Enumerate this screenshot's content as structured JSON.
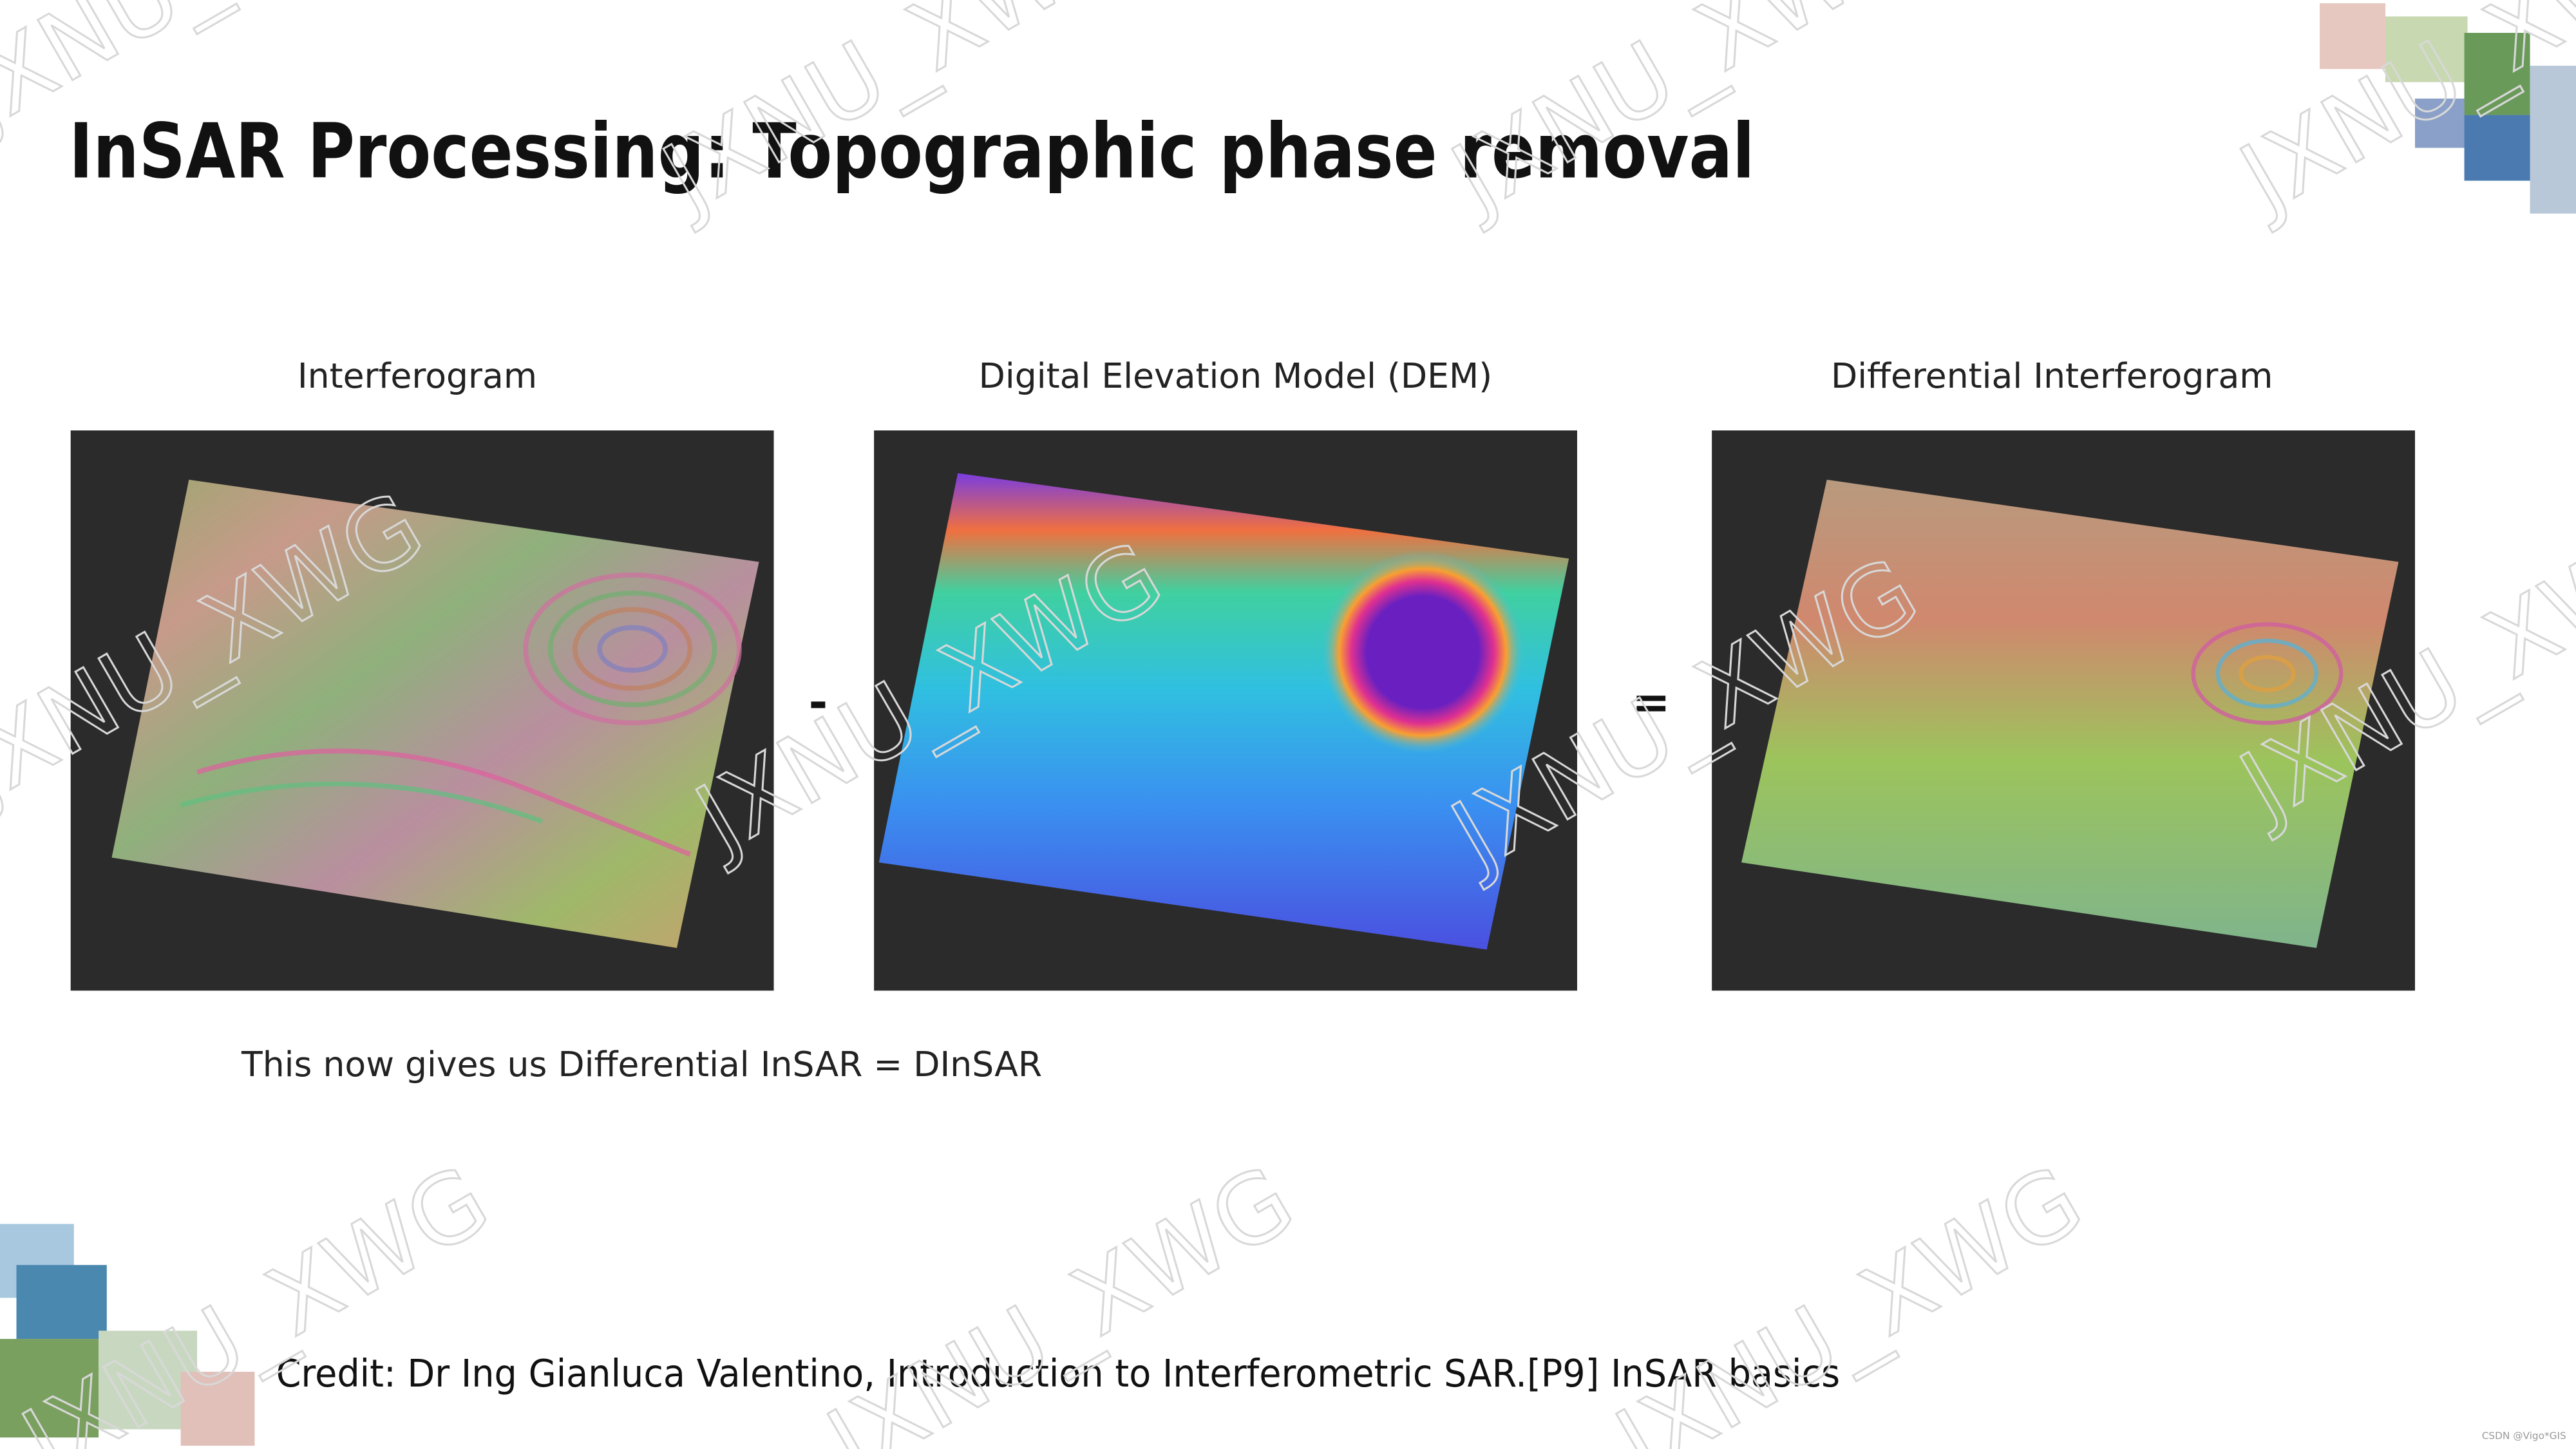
{
  "slide": {
    "title": "InSAR Processing: Topographic phase removal",
    "panels": [
      {
        "label": "Interferogram"
      },
      {
        "label": "Digital Elevation Model (DEM)"
      },
      {
        "label": "Differential Interferogram"
      }
    ],
    "operators": [
      "-",
      "="
    ],
    "caption": "This now gives us Differential InSAR = DInSAR",
    "credit": "Credit: Dr Ing Gianluca Valentino, Introduction to Interferometric SAR.[P9] InSAR basics",
    "watermark": "JXNU_XWG",
    "source_mark": "CSDN @Vigo*GIS"
  }
}
